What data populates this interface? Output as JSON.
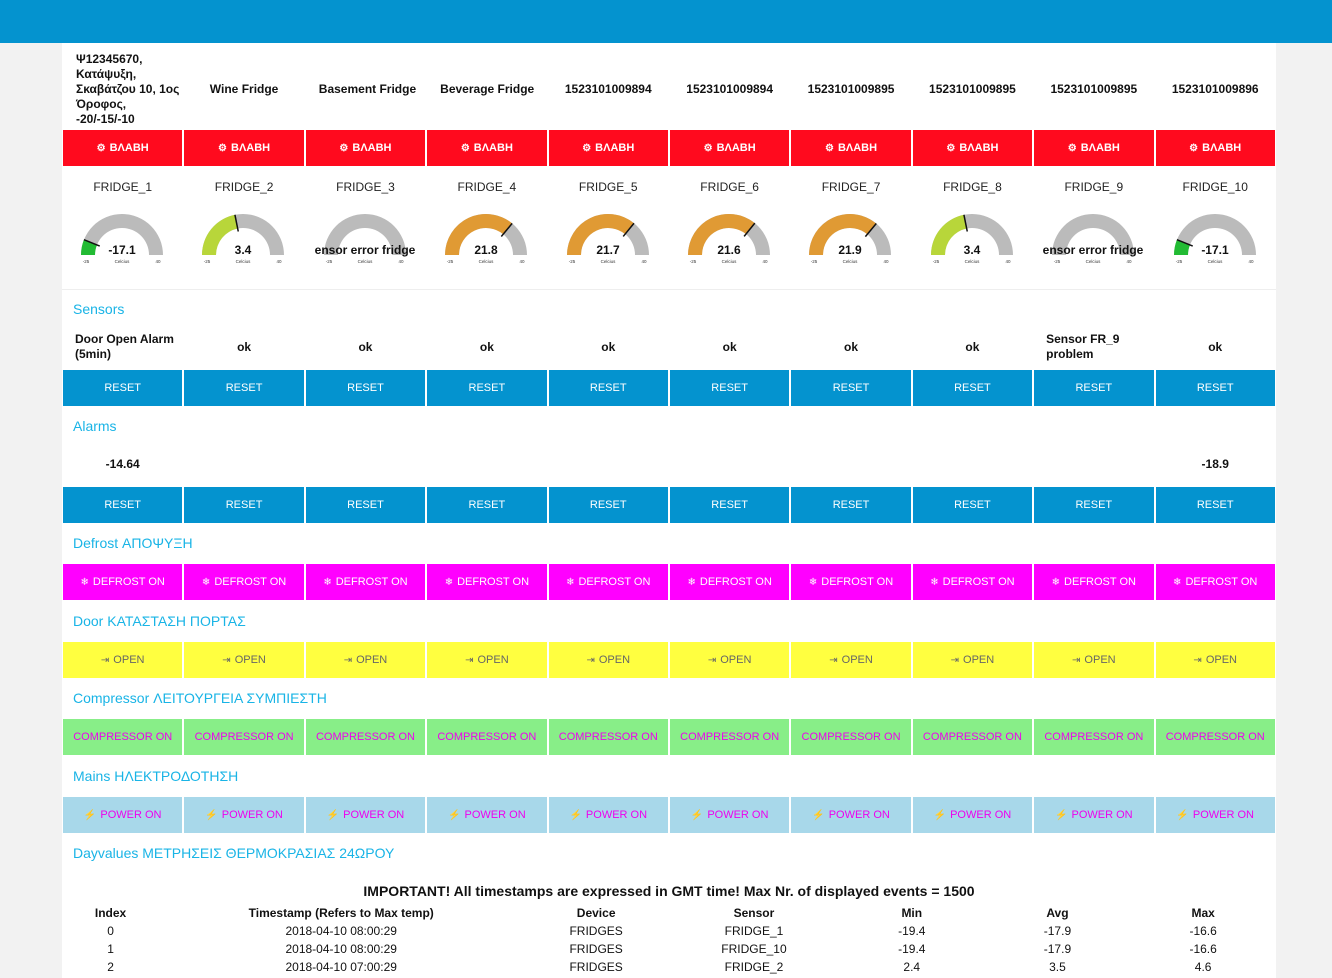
{
  "fridges": [
    {
      "name": "Ψ12345670, Κατάψυξη, Σκαβάτζου 10, 1ος Όροφος, -20/-15/-10",
      "label": "FRIDGE_1",
      "temp": "-17.1",
      "value": -17.1,
      "color": "#22bb33",
      "status": "Door Open Alarm (5min)",
      "alarm": "-14.64"
    },
    {
      "name": "Wine Fridge",
      "label": "FRIDGE_2",
      "temp": "3.4",
      "value": 3.4,
      "color": "#b8d63a",
      "status": "ok",
      "alarm": ""
    },
    {
      "name": "Basement Fridge",
      "label": "FRIDGE_3",
      "temp": "ensor error fridge",
      "value": null,
      "color": "#bbbbbb",
      "status": "ok",
      "alarm": ""
    },
    {
      "name": "Beverage Fridge",
      "label": "FRIDGE_4",
      "temp": "21.8",
      "value": 21.8,
      "color": "#e09a34",
      "status": "ok",
      "alarm": ""
    },
    {
      "name": "1523101009894",
      "label": "FRIDGE_5",
      "temp": "21.7",
      "value": 21.7,
      "color": "#e09a34",
      "status": "ok",
      "alarm": ""
    },
    {
      "name": "1523101009894",
      "label": "FRIDGE_6",
      "temp": "21.6",
      "value": 21.6,
      "color": "#e09a34",
      "status": "ok",
      "alarm": ""
    },
    {
      "name": "1523101009895",
      "label": "FRIDGE_7",
      "temp": "21.9",
      "value": 21.9,
      "color": "#e09a34",
      "status": "ok",
      "alarm": ""
    },
    {
      "name": "1523101009895",
      "label": "FRIDGE_8",
      "temp": "3.4",
      "value": 3.4,
      "color": "#b8d63a",
      "status": "ok",
      "alarm": ""
    },
    {
      "name": "1523101009895",
      "label": "FRIDGE_9",
      "temp": "ensor error fridge",
      "value": null,
      "color": "#bbbbbb",
      "status": "Sensor FR_9 problem",
      "alarm": ""
    },
    {
      "name": "1523101009896",
      "label": "FRIDGE_10",
      "temp": "-17.1",
      "value": -17.1,
      "color": "#22bb33",
      "status": "ok",
      "alarm": "-18.9"
    }
  ],
  "gauge": {
    "min": -25,
    "max": 40,
    "min_label": "-25",
    "max_label": "40",
    "unit": "Celcius"
  },
  "labels": {
    "fault": "ΒΛΑΒΗ",
    "reset": "RESET",
    "defrost": "DEFROST ON",
    "door": "OPEN",
    "compressor": "COMPRESSOR ON",
    "power": "POWER ON"
  },
  "sections": {
    "sensors": "Sensors",
    "alarms": "Alarms",
    "defrost": "Defrost ΑΠΟΨΥΞΗ",
    "door": "Door ΚΑΤΑΣΤΑΣΗ ΠΟΡΤΑΣ",
    "compressor": "Compressor ΛΕΙΤΟΥΡΓΕΙΑ ΣΥΜΠΙΕΣΤΗ",
    "mains": "Mains ΗΛΕΚΤΡΟΔΟΤΗΣΗ",
    "dayvalues": "Dayvalues ΜΕΤΡΗΣΕΙΣ ΘΕΡΜΟΚΡΑΣΙΑΣ 24ΩΡΟΥ"
  },
  "notice": "IMPORTANT! All timestamps are expressed in GMT time! Max Nr. of displayed events = 1500",
  "table": {
    "headers": [
      "Index",
      "Timestamp (Refers to Max temp)",
      "Device",
      "Sensor",
      "Min",
      "Avg",
      "Max"
    ],
    "rows": [
      [
        "0",
        "2018-04-10 08:00:29",
        "FRIDGES",
        "FRIDGE_1",
        "-19.4",
        "-17.9",
        "-16.6"
      ],
      [
        "1",
        "2018-04-10 08:00:29",
        "FRIDGES",
        "FRIDGE_10",
        "-19.4",
        "-17.9",
        "-16.6"
      ],
      [
        "2",
        "2018-04-10 07:00:29",
        "FRIDGES",
        "FRIDGE_2",
        "2.4",
        "3.5",
        "4.6"
      ]
    ]
  }
}
